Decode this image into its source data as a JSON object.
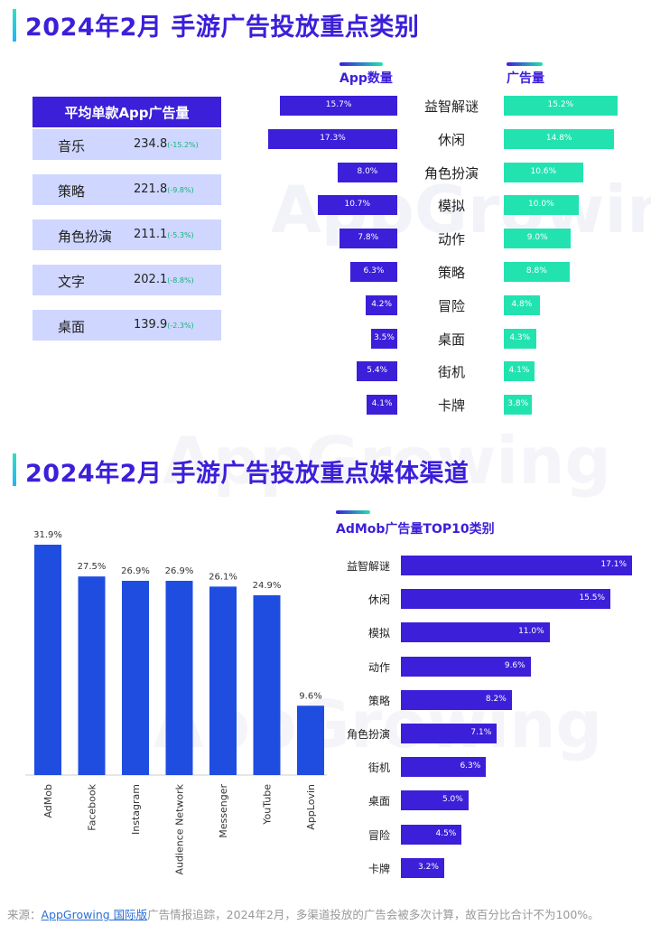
{
  "section1": {
    "title": "2024年2月 手游广告投放重点类别",
    "left_legend": "App数量",
    "right_legend": "广告量"
  },
  "section2": {
    "title": "2024年2月 手游广告投放重点媒体渠道",
    "hbar_legend": "AdMob广告量TOP10类别"
  },
  "watermark": "AppGrowing",
  "footnote": {
    "prefix": "来源：",
    "link": "AppGrowing 国际版",
    "text": "广告情报追踪，2024年2月，多渠道投放的广告会被多次计算，故百分比合计不为100%。"
  },
  "colors": {
    "purple": "#3b1fd9",
    "teal": "#22e3b0",
    "blue": "#1f4de0",
    "table_row": "#cfd6ff",
    "change": "#15b37a"
  },
  "chart_data": [
    {
      "type": "table",
      "header": "平均单款App广告量",
      "rows": [
        {
          "category": "音乐",
          "value": "234.8",
          "change": "(-15.2%)"
        },
        {
          "category": "策略",
          "value": "221.8",
          "change": "(-9.8%)"
        },
        {
          "category": "角色扮演",
          "value": "211.1",
          "change": "(-5.3%)"
        },
        {
          "category": "文字",
          "value": "202.1",
          "change": "(-8.8%)"
        },
        {
          "category": "桌面",
          "value": "139.9",
          "change": "(-2.3%)"
        }
      ]
    },
    {
      "type": "bar",
      "orientation": "butterfly",
      "categories": [
        "益智解谜",
        "休闲",
        "角色扮演",
        "模拟",
        "动作",
        "策略",
        "冒险",
        "桌面",
        "街机",
        "卡牌"
      ],
      "series": [
        {
          "name": "App数量",
          "values": [
            15.7,
            17.3,
            8.0,
            10.7,
            7.8,
            6.3,
            4.2,
            3.5,
            5.4,
            4.1
          ],
          "labels": [
            "15.7%",
            "17.3%",
            "8.0%",
            "10.7%",
            "7.8%",
            "6.3%",
            "4.2%",
            "3.5%",
            "5.4%",
            "4.1%"
          ]
        },
        {
          "name": "广告量",
          "values": [
            15.2,
            14.8,
            10.6,
            10.0,
            9.0,
            8.8,
            4.8,
            4.3,
            4.1,
            3.8
          ],
          "labels": [
            "15.2%",
            "14.8%",
            "10.6%",
            "10.0%",
            "9.0%",
            "8.8%",
            "4.8%",
            "4.3%",
            "4.1%",
            "3.8%"
          ]
        }
      ]
    },
    {
      "type": "bar",
      "categories": [
        "AdMob",
        "Facebook",
        "Instagram",
        "Audience Network",
        "Messenger",
        "YouTube",
        "AppLovin"
      ],
      "values": [
        31.9,
        27.5,
        26.9,
        26.9,
        26.1,
        24.9,
        9.6
      ],
      "labels": [
        "31.9%",
        "27.5%",
        "26.9%",
        "26.9%",
        "26.1%",
        "24.9%",
        "9.6%"
      ]
    },
    {
      "type": "bar",
      "orientation": "horizontal",
      "title": "AdMob广告量TOP10类别",
      "categories": [
        "益智解谜",
        "休闲",
        "模拟",
        "动作",
        "策略",
        "角色扮演",
        "街机",
        "桌面",
        "冒险",
        "卡牌"
      ],
      "values": [
        17.1,
        15.5,
        11.0,
        9.6,
        8.2,
        7.1,
        6.3,
        5.0,
        4.5,
        3.2
      ],
      "labels": [
        "17.1%",
        "15.5%",
        "11.0%",
        "9.6%",
        "8.2%",
        "7.1%",
        "6.3%",
        "5.0%",
        "4.5%",
        "3.2%"
      ]
    }
  ]
}
